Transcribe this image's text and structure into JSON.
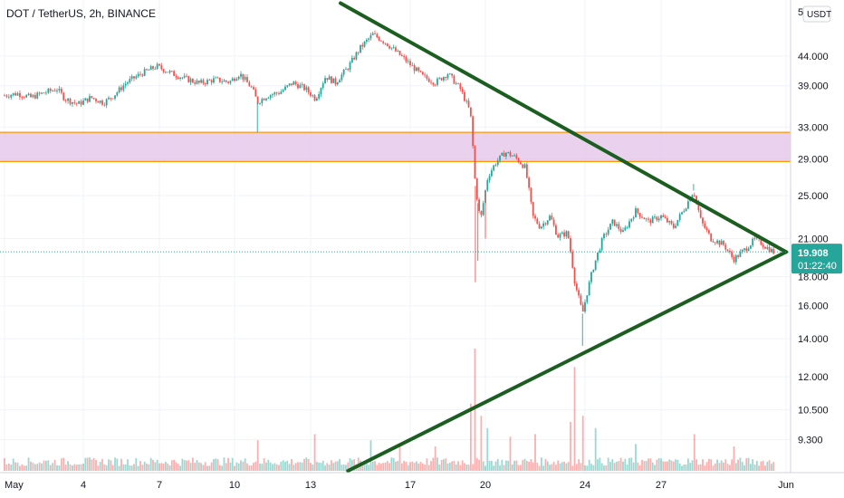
{
  "chart_data": {
    "type": "candlestick",
    "title": "DOT / TetherUS, 2h, BINANCE",
    "currency": "USDT",
    "y_scale": "log",
    "ylim": [
      8.2,
      54
    ],
    "y_ticks": [
      {
        "label": "44.000",
        "value": 44
      },
      {
        "label": "39.000",
        "value": 39
      },
      {
        "label": "33.000",
        "value": 33
      },
      {
        "label": "29.000",
        "value": 29
      },
      {
        "label": "25.000",
        "value": 25
      },
      {
        "label": "21.000",
        "value": 21
      },
      {
        "label": "18.000",
        "value": 18
      },
      {
        "label": "16.000",
        "value": 16
      },
      {
        "label": "14.000",
        "value": 14
      },
      {
        "label": "12.000",
        "value": 12
      },
      {
        "label": "10.500",
        "value": 10.5
      },
      {
        "label": "9.300",
        "value": 9.3
      }
    ],
    "y_top_partial_label": "5",
    "x_ticks": [
      {
        "label": "May",
        "day": 1
      },
      {
        "label": "4",
        "day": 4
      },
      {
        "label": "7",
        "day": 7
      },
      {
        "label": "10",
        "day": 10
      },
      {
        "label": "13",
        "day": 13
      },
      {
        "label": "17",
        "day": 17
      },
      {
        "label": "20",
        "day": 20
      },
      {
        "label": "24",
        "day": 24
      },
      {
        "label": "27",
        "day": 27
      },
      {
        "label": "Jun",
        "day": 32
      }
    ],
    "last_price": {
      "value": 19.908,
      "label": "19.908",
      "timer": "01:22:40"
    },
    "zone": {
      "from": 28.7,
      "to": 32.3
    },
    "trendlines": [
      {
        "name": "upper-trendline",
        "start": {
          "day": 14.2,
          "price": 54.5
        },
        "end": {
          "day": 32,
          "price": 19.9
        }
      },
      {
        "name": "lower-trendline",
        "start": {
          "day": 14.5,
          "price": 8.2
        },
        "end": {
          "day": 32,
          "price": 19.9
        }
      }
    ],
    "price_path": [
      {
        "day": 1.0,
        "p": 37.5
      },
      {
        "day": 1.5,
        "p": 37.8
      },
      {
        "day": 2.0,
        "p": 37.2
      },
      {
        "day": 2.5,
        "p": 37.9
      },
      {
        "day": 3.0,
        "p": 38.5
      },
      {
        "day": 3.3,
        "p": 37.0
      },
      {
        "day": 3.8,
        "p": 36.2
      },
      {
        "day": 4.3,
        "p": 37.2
      },
      {
        "day": 4.8,
        "p": 36.4
      },
      {
        "day": 5.2,
        "p": 37.5
      },
      {
        "day": 5.7,
        "p": 39.5
      },
      {
        "day": 6.3,
        "p": 41.0
      },
      {
        "day": 6.9,
        "p": 42.2
      },
      {
        "day": 7.5,
        "p": 41.0
      },
      {
        "day": 8.0,
        "p": 40.2
      },
      {
        "day": 8.6,
        "p": 39.4
      },
      {
        "day": 9.2,
        "p": 40.0
      },
      {
        "day": 9.8,
        "p": 39.6
      },
      {
        "day": 10.2,
        "p": 41.0
      },
      {
        "day": 10.7,
        "p": 38.5
      },
      {
        "day": 10.9,
        "p": 36.5
      },
      {
        "day": 11.3,
        "p": 37.5
      },
      {
        "day": 11.8,
        "p": 38.0
      },
      {
        "day": 12.3,
        "p": 39.5
      },
      {
        "day": 12.8,
        "p": 38.5
      },
      {
        "day": 13.2,
        "p": 37.0
      },
      {
        "day": 13.6,
        "p": 40.5
      },
      {
        "day": 14.0,
        "p": 39.5
      },
      {
        "day": 14.5,
        "p": 42.0
      },
      {
        "day": 15.0,
        "p": 45.5
      },
      {
        "day": 15.5,
        "p": 48.0
      },
      {
        "day": 16.0,
        "p": 46.5
      },
      {
        "day": 16.5,
        "p": 44.5
      },
      {
        "day": 17.0,
        "p": 42.5
      },
      {
        "day": 17.5,
        "p": 40.5
      },
      {
        "day": 18.0,
        "p": 39.5
      },
      {
        "day": 18.5,
        "p": 41.0
      },
      {
        "day": 19.0,
        "p": 38.5
      },
      {
        "day": 19.4,
        "p": 35.0
      },
      {
        "day": 19.6,
        "p": 26.0
      },
      {
        "day": 19.8,
        "p": 22.5
      },
      {
        "day": 20.1,
        "p": 27.0
      },
      {
        "day": 20.4,
        "p": 28.5
      },
      {
        "day": 20.8,
        "p": 29.8
      },
      {
        "day": 21.2,
        "p": 29.2
      },
      {
        "day": 21.6,
        "p": 28.0
      },
      {
        "day": 21.9,
        "p": 23.0
      },
      {
        "day": 22.2,
        "p": 22.0
      },
      {
        "day": 22.6,
        "p": 23.0
      },
      {
        "day": 22.9,
        "p": 21.2
      },
      {
        "day": 23.3,
        "p": 21.5
      },
      {
        "day": 23.6,
        "p": 17.5
      },
      {
        "day": 23.9,
        "p": 15.5
      },
      {
        "day": 24.3,
        "p": 18.5
      },
      {
        "day": 24.7,
        "p": 21.0
      },
      {
        "day": 25.1,
        "p": 22.5
      },
      {
        "day": 25.5,
        "p": 21.5
      },
      {
        "day": 26.0,
        "p": 23.5
      },
      {
        "day": 26.5,
        "p": 22.5
      },
      {
        "day": 27.0,
        "p": 23.0
      },
      {
        "day": 27.5,
        "p": 22.0
      },
      {
        "day": 28.0,
        "p": 24.0
      },
      {
        "day": 28.3,
        "p": 25.5
      },
      {
        "day": 28.6,
        "p": 22.5
      },
      {
        "day": 29.0,
        "p": 21.0
      },
      {
        "day": 29.5,
        "p": 20.5
      },
      {
        "day": 29.9,
        "p": 19.3
      },
      {
        "day": 30.3,
        "p": 20.0
      },
      {
        "day": 30.8,
        "p": 21.0
      },
      {
        "day": 31.2,
        "p": 20.3
      },
      {
        "day": 31.5,
        "p": 19.9
      }
    ],
    "volume_spikes": [
      {
        "day": 19.6,
        "v": 1.0
      },
      {
        "day": 19.4,
        "v": 0.55
      },
      {
        "day": 19.8,
        "v": 0.45
      },
      {
        "day": 20.1,
        "v": 0.35
      },
      {
        "day": 23.6,
        "v": 0.85
      },
      {
        "day": 23.9,
        "v": 0.45
      },
      {
        "day": 23.4,
        "v": 0.4
      },
      {
        "day": 24.4,
        "v": 0.35
      },
      {
        "day": 22.0,
        "v": 0.3
      },
      {
        "day": 21.0,
        "v": 0.28
      },
      {
        "day": 28.3,
        "v": 0.3
      },
      {
        "day": 13.2,
        "v": 0.3
      },
      {
        "day": 10.9,
        "v": 0.25
      },
      {
        "day": 15.4,
        "v": 0.25
      },
      {
        "day": 16.6,
        "v": 0.22
      },
      {
        "day": 18.0,
        "v": 0.2
      },
      {
        "day": 26.0,
        "v": 0.22
      },
      {
        "day": 29.9,
        "v": 0.2
      }
    ]
  }
}
